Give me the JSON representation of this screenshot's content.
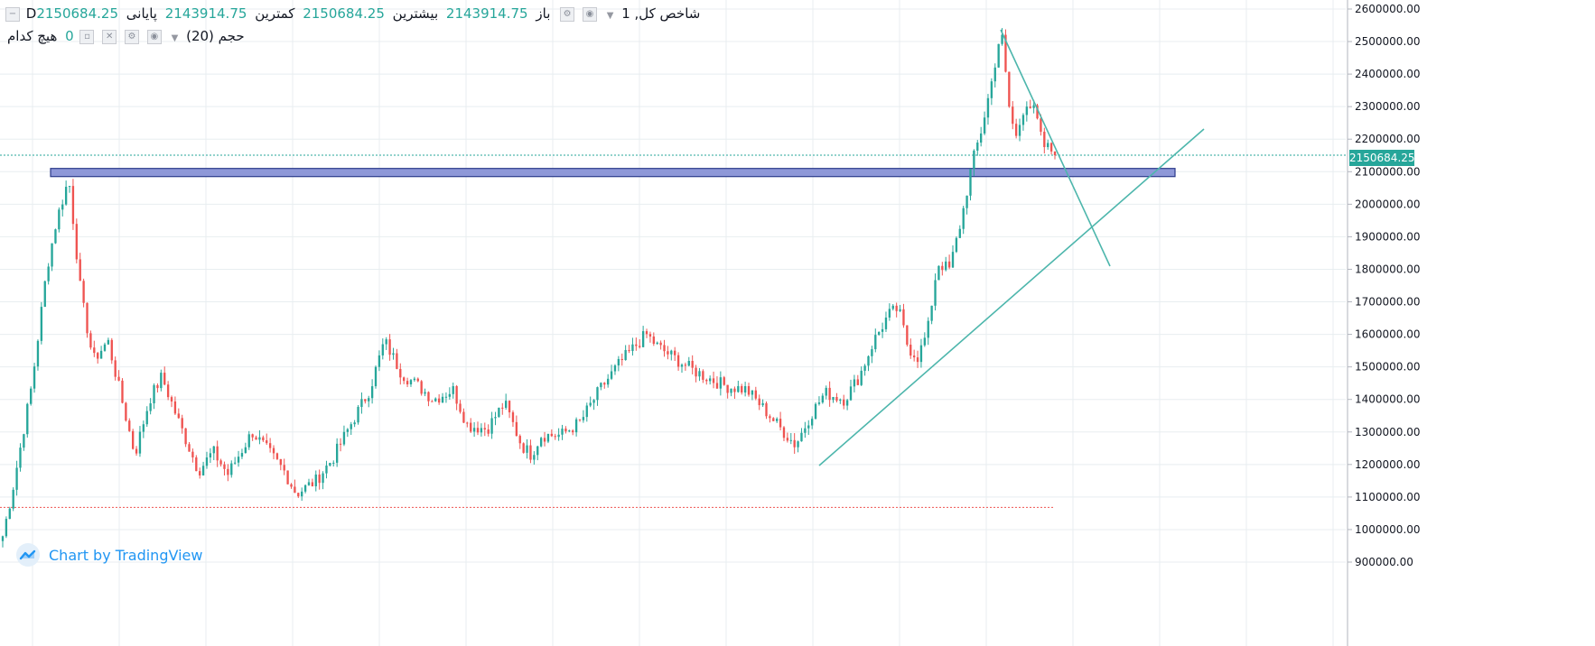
{
  "legend": {
    "main": {
      "symbol": "Dشاخص کل, 1",
      "open_label": "باز",
      "open_value": "2143914.75",
      "high_label": "بیشترین",
      "high_value": "2150684.25",
      "low_label": "کمترین",
      "low_value": "2143914.75",
      "close_label": "پایانی",
      "close_value": "2150684.25"
    },
    "volume": {
      "label": "حجم (20)",
      "none_label": "هیچ کدام",
      "value": "0"
    }
  },
  "watermark": {
    "text": "Chart by TradingView",
    "icon": "tradingview-logo-icon"
  },
  "colors": {
    "up": "#26a69a",
    "down": "#ef5350",
    "grid": "#e8eef0",
    "trendline": "#4db6ac",
    "zone_fill": "#8e98d8",
    "zone_border": "#2b3a8a",
    "axis_text": "#131722"
  },
  "chart_data": {
    "type": "candlestick",
    "x_axis_visible": false,
    "ylim": [
      900000,
      2620000
    ],
    "y_ticks": [
      900000,
      1000000,
      1100000,
      1200000,
      1300000,
      1400000,
      1500000,
      1600000,
      1700000,
      1800000,
      1900000,
      2000000,
      2100000,
      2200000,
      2300000,
      2400000,
      2500000,
      2600000
    ],
    "y_tick_labels": [
      "900000.00",
      "1000000.00",
      "1100000.00",
      "1200000.00",
      "1300000.00",
      "1400000.00",
      "1500000.00",
      "1600000.00",
      "1700000.00",
      "1800000.00",
      "1900000.00",
      "2000000.00",
      "2100000.00",
      "2200000.00",
      "2300000.00",
      "2400000.00",
      "2500000.00",
      "2600000.00"
    ],
    "last_price": 2150684.25,
    "last_price_label": "2150684.25",
    "n_bars": 300,
    "close_path": [
      [
        0,
        980000
      ],
      [
        4,
        1120000
      ],
      [
        12,
        1450000
      ],
      [
        18,
        1800000
      ],
      [
        22,
        1950000
      ],
      [
        27,
        2080000
      ],
      [
        32,
        1720000
      ],
      [
        37,
        1520000
      ],
      [
        43,
        1580000
      ],
      [
        48,
        1420000
      ],
      [
        54,
        1230000
      ],
      [
        60,
        1400000
      ],
      [
        65,
        1470000
      ],
      [
        72,
        1330000
      ],
      [
        80,
        1180000
      ],
      [
        86,
        1240000
      ],
      [
        92,
        1170000
      ],
      [
        102,
        1300000
      ],
      [
        115,
        1180000
      ],
      [
        120,
        1110000
      ],
      [
        128,
        1150000
      ],
      [
        135,
        1220000
      ],
      [
        142,
        1320000
      ],
      [
        150,
        1430000
      ],
      [
        156,
        1580000
      ],
      [
        163,
        1480000
      ],
      [
        170,
        1440000
      ],
      [
        176,
        1400000
      ],
      [
        184,
        1430000
      ],
      [
        190,
        1320000
      ],
      [
        198,
        1310000
      ],
      [
        205,
        1390000
      ],
      [
        212,
        1260000
      ],
      [
        216,
        1230000
      ],
      [
        220,
        1290000
      ],
      [
        228,
        1290000
      ],
      [
        236,
        1330000
      ],
      [
        244,
        1430000
      ],
      [
        252,
        1510000
      ],
      [
        258,
        1560000
      ],
      [
        263,
        1600000
      ],
      [
        268,
        1560000
      ],
      [
        274,
        1530000
      ],
      [
        282,
        1490000
      ],
      [
        290,
        1460000
      ],
      [
        296,
        1440000
      ],
      [
        304,
        1430000
      ],
      [
        310,
        1380000
      ],
      [
        318,
        1310000
      ],
      [
        324,
        1260000
      ],
      [
        330,
        1350000
      ],
      [
        336,
        1420000
      ],
      [
        344,
        1400000
      ],
      [
        350,
        1470000
      ],
      [
        356,
        1580000
      ],
      [
        362,
        1660000
      ],
      [
        366,
        1680000
      ],
      [
        370,
        1560000
      ],
      [
        374,
        1530000
      ],
      [
        378,
        1610000
      ],
      [
        382,
        1820000
      ],
      [
        387,
        1800000
      ],
      [
        392,
        1960000
      ],
      [
        396,
        2120000
      ],
      [
        400,
        2230000
      ],
      [
        404,
        2370000
      ],
      [
        408,
        2540000
      ],
      [
        411,
        2310000
      ],
      [
        414,
        2200000
      ],
      [
        418,
        2320000
      ],
      [
        422,
        2280000
      ],
      [
        425,
        2180000
      ],
      [
        428,
        2170000
      ],
      [
        430,
        2150684
      ]
    ],
    "resistance_zone": {
      "low": 2085000,
      "high": 2110000
    },
    "support_level": 1068000,
    "current_price_line": 2150684.25
  }
}
